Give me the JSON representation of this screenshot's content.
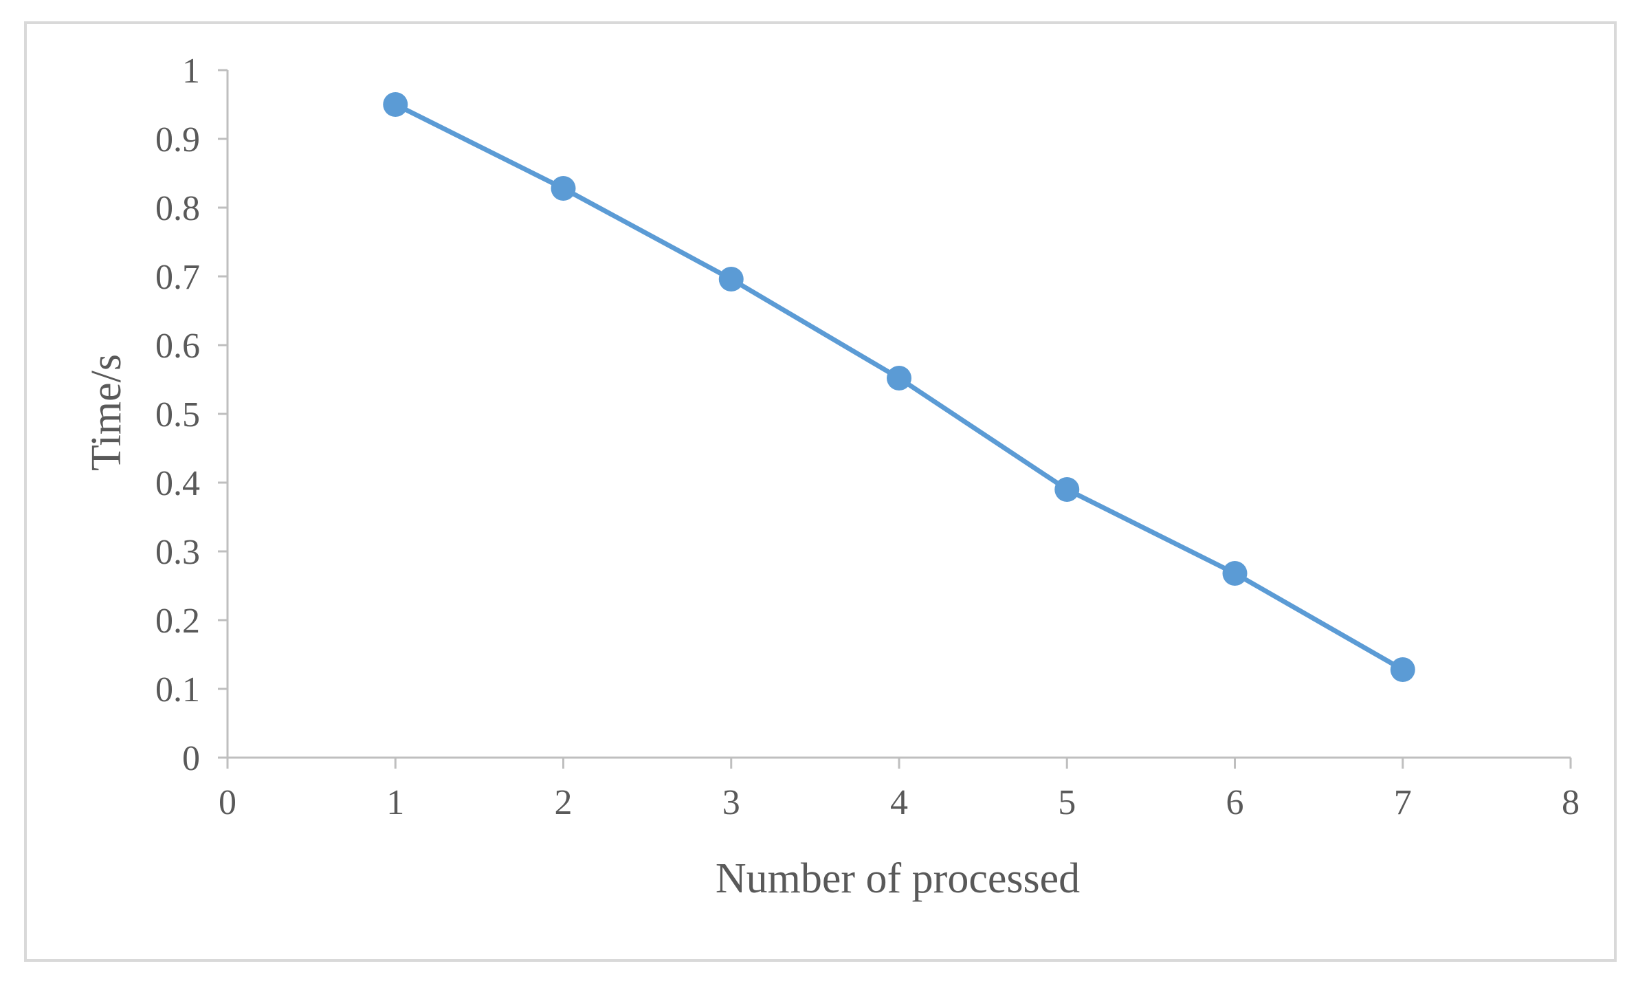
{
  "chart_data": {
    "type": "line",
    "title": "",
    "xlabel": "Number of processed",
    "ylabel": "Time/s",
    "xlim": [
      0,
      8
    ],
    "ylim": [
      0,
      1
    ],
    "x_ticks": [
      "0",
      "1",
      "2",
      "3",
      "4",
      "5",
      "6",
      "7",
      "8"
    ],
    "y_ticks": [
      "0",
      "0.1",
      "0.2",
      "0.3",
      "0.4",
      "0.5",
      "0.6",
      "0.7",
      "0.8",
      "0.9",
      "1"
    ],
    "grid": false,
    "legend": "none",
    "series": [
      {
        "color": "#5b9bd5",
        "x": [
          1,
          2,
          3,
          4,
          5,
          6,
          7
        ],
        "y": [
          0.95,
          0.828,
          0.696,
          0.552,
          0.39,
          0.268,
          0.128
        ]
      }
    ]
  }
}
